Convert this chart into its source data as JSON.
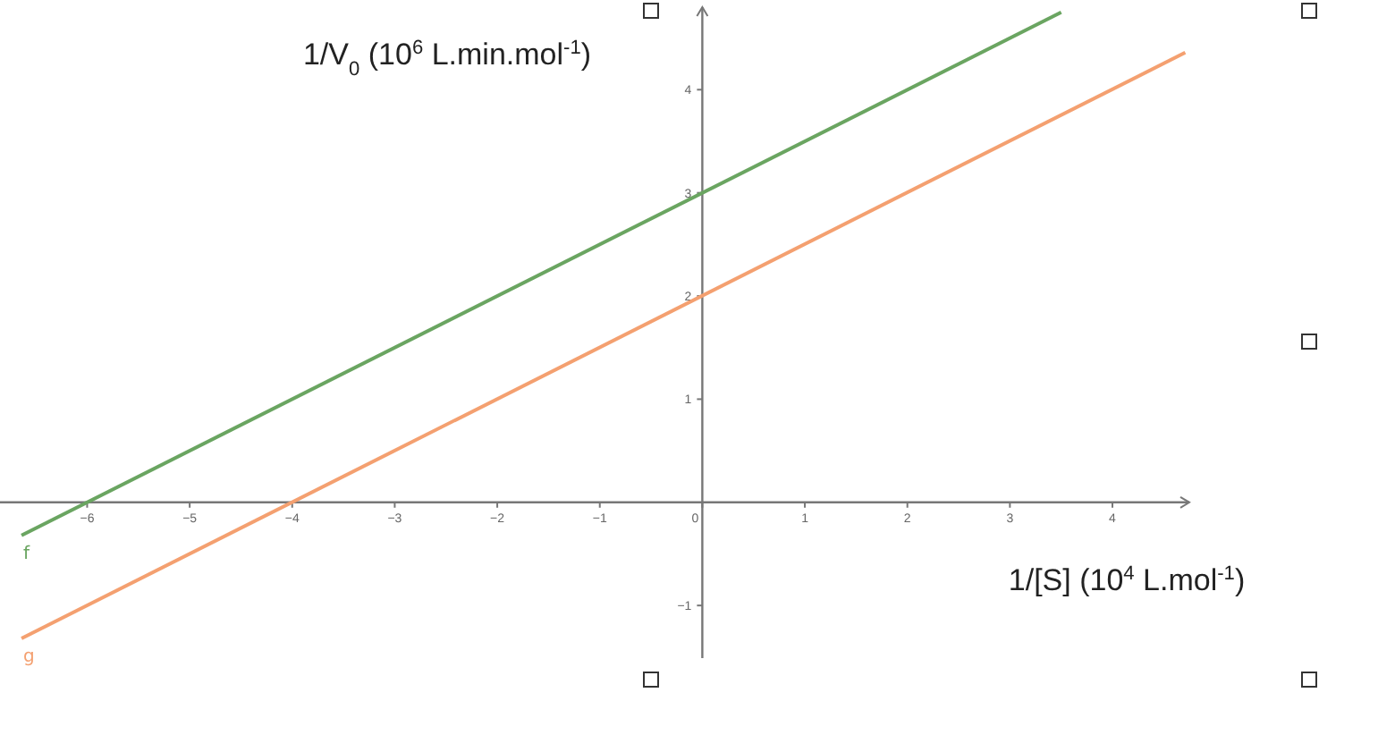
{
  "chart_data": {
    "type": "line",
    "ylabel": "1/V$_{0}$ (10$^{6}$ L.min.mol$^{-1}$)",
    "xlabel": "1/[S] (10$^{4}$ L.mol$^{-1}$)",
    "xlim": [
      -6.85,
      4.75
    ],
    "ylim": [
      -1.51,
      4.8
    ],
    "xticks": [
      {
        "value": -6,
        "label": "−6"
      },
      {
        "value": -5,
        "label": "−5"
      },
      {
        "value": -4,
        "label": "−4"
      },
      {
        "value": -3,
        "label": "−3"
      },
      {
        "value": -2,
        "label": "−2"
      },
      {
        "value": -1,
        "label": "−1"
      },
      0,
      1,
      2,
      3,
      4
    ],
    "yticks": [
      {
        "value": -1,
        "label": "−1"
      },
      1,
      2,
      3,
      4
    ],
    "grid": false,
    "marker": "none",
    "line_style": "solid",
    "series": [
      {
        "name": "f",
        "color": "#6aa561",
        "x": [
          -6.64,
          3.5
        ],
        "values": [
          -0.32,
          4.75
        ]
      },
      {
        "name": "g",
        "color": "#f4a070",
        "x": [
          -6.64,
          4.71
        ],
        "values": [
          -1.32,
          4.36
        ]
      }
    ]
  }
}
